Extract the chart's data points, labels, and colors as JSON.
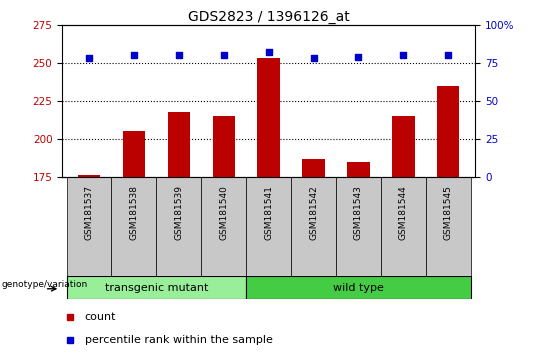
{
  "title": "GDS2823 / 1396126_at",
  "samples": [
    "GSM181537",
    "GSM181538",
    "GSM181539",
    "GSM181540",
    "GSM181541",
    "GSM181542",
    "GSM181543",
    "GSM181544",
    "GSM181545"
  ],
  "count_values": [
    176,
    205,
    218,
    215,
    253,
    187,
    185,
    215,
    235
  ],
  "percentile_values": [
    78,
    80,
    80,
    80,
    82,
    78,
    79,
    80,
    80
  ],
  "ylim_left": [
    175,
    275
  ],
  "ylim_right": [
    0,
    100
  ],
  "yticks_left": [
    175,
    200,
    225,
    250,
    275
  ],
  "yticks_right": [
    0,
    25,
    50,
    75,
    100
  ],
  "bar_color": "#bb0000",
  "dot_color": "#0000cc",
  "bar_bottom": 175,
  "groups": [
    {
      "label": "transgenic mutant",
      "span": [
        0,
        3
      ],
      "color": "#99ee99"
    },
    {
      "label": "wild type",
      "span": [
        4,
        8
      ],
      "color": "#44cc44"
    }
  ],
  "group_label": "genotype/variation",
  "legend_count_label": "count",
  "legend_pct_label": "percentile rank within the sample",
  "title_fontsize": 10,
  "tick_label_fontsize": 7.5,
  "dotted_line_color": "#000000",
  "plot_bg": "#ffffff",
  "tick_area_bg": "#c8c8c8",
  "hgrid_ticks": [
    200,
    225,
    250
  ]
}
